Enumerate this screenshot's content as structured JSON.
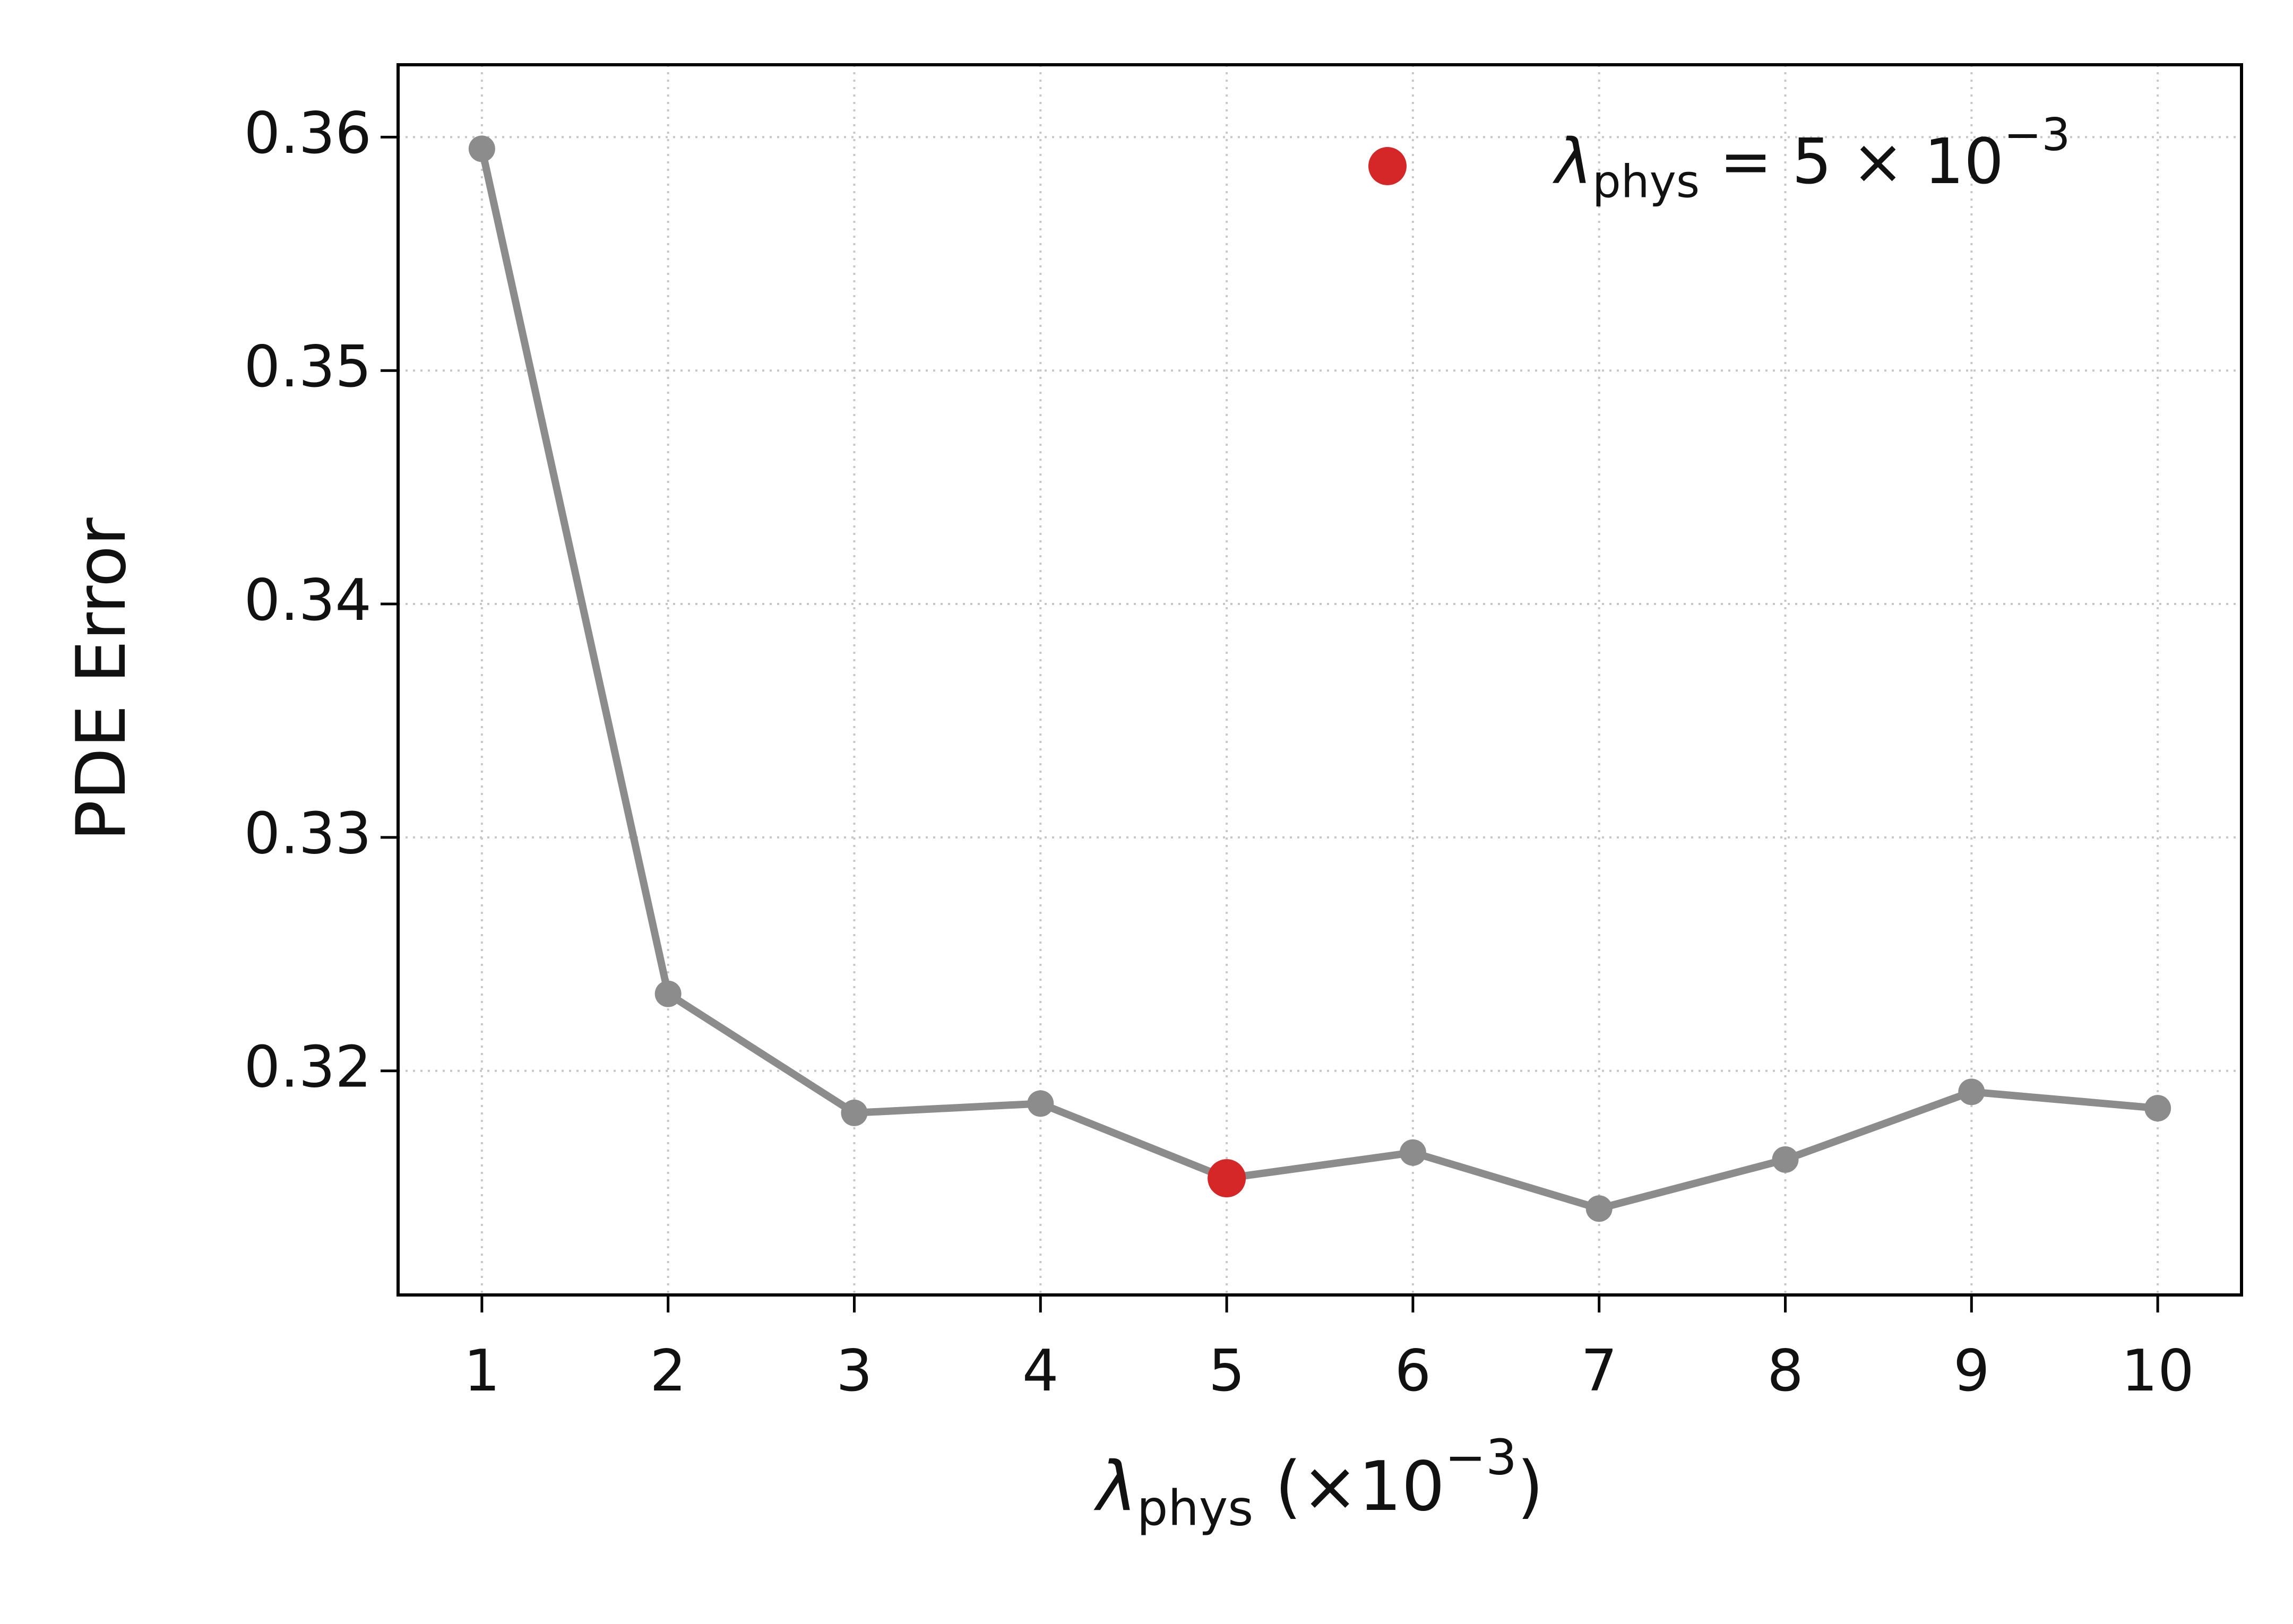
{
  "chart_data": {
    "type": "line",
    "x_label": [
      {
        "text": "λ",
        "style": "italic"
      },
      {
        "text": "phys",
        "style": "sub"
      },
      {
        "text": " (×10",
        "style": "normal"
      },
      {
        "text": "−3",
        "style": "sup"
      },
      {
        "text": ")",
        "style": "normal"
      }
    ],
    "y_label": "PDE Error",
    "x": [
      1,
      2,
      3,
      4,
      5,
      6,
      7,
      8,
      9,
      10
    ],
    "series": [
      {
        "name": null,
        "color": "#8c8c8c",
        "x": [
          1,
          2,
          3,
          4,
          5,
          6,
          7,
          8,
          9,
          10
        ],
        "values": [
          0.3595,
          0.3233,
          0.3182,
          0.3186,
          0.3154,
          0.3165,
          0.3141,
          0.3162,
          0.3191,
          0.3184
        ]
      },
      {
        "name": [
          {
            "text": "λ",
            "style": "italic"
          },
          {
            "text": "phys",
            "style": "sub"
          },
          {
            "text": " = 5 × 10",
            "style": "normal"
          },
          {
            "text": "−3",
            "style": "sup"
          }
        ],
        "color": "#d62728",
        "x": [
          5
        ],
        "values": [
          0.3154
        ]
      }
    ],
    "xlim": [
      0.55,
      10.45
    ],
    "ylim": [
      0.3104,
      0.3631
    ],
    "xticks": [
      1,
      2,
      3,
      4,
      5,
      6,
      7,
      8,
      9,
      10
    ],
    "yticks": [
      0.32,
      0.33,
      0.34,
      0.35,
      0.36
    ],
    "grid": true,
    "legend": "upper right"
  }
}
